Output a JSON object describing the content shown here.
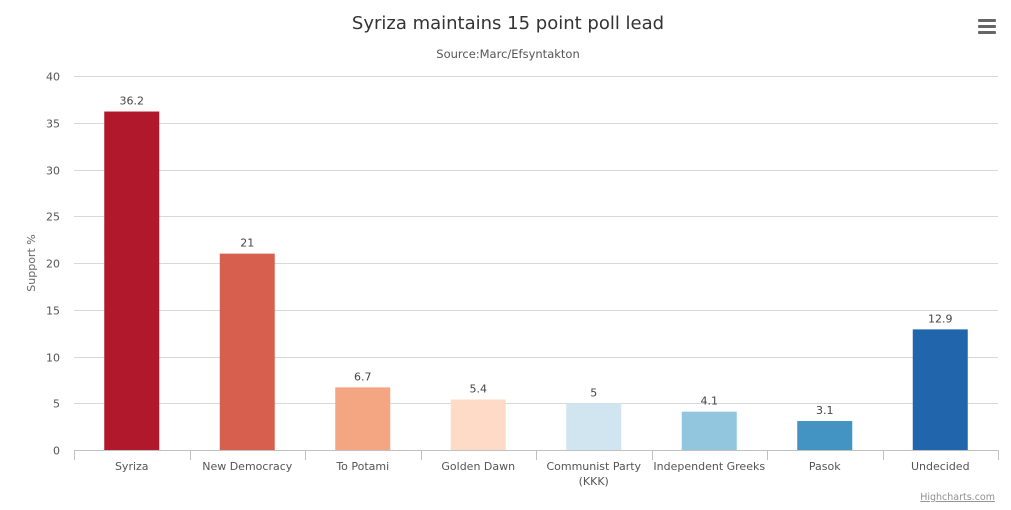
{
  "chart_data": {
    "type": "bar",
    "title": "Syriza maintains 15 point poll lead",
    "subtitle": "Source:Marc/Efsyntakton",
    "xlabel": "",
    "ylabel": "Support %",
    "ylim": [
      0,
      40
    ],
    "ytick_step": 5,
    "grid": true,
    "categories": [
      [
        "Syriza"
      ],
      [
        "New Democracy"
      ],
      [
        "To Potami"
      ],
      [
        "Golden Dawn"
      ],
      [
        "Communist Party",
        "(KKK)"
      ],
      [
        "Independent Greeks"
      ],
      [
        "Pasok"
      ],
      [
        "Undecided"
      ]
    ],
    "values": [
      36.2,
      21,
      6.7,
      5.4,
      5,
      4.1,
      3.1,
      12.9
    ],
    "colors": [
      "#b2182b",
      "#d6604d",
      "#f4a582",
      "#fddbc7",
      "#d1e5f0",
      "#92c5de",
      "#4393c3",
      "#2166ac"
    ],
    "gridline_color": "#d8d8d8",
    "axis_color": "#c0c0c0"
  },
  "credits": "Highcharts.com",
  "menu_icon": "hamburger-menu-icon"
}
